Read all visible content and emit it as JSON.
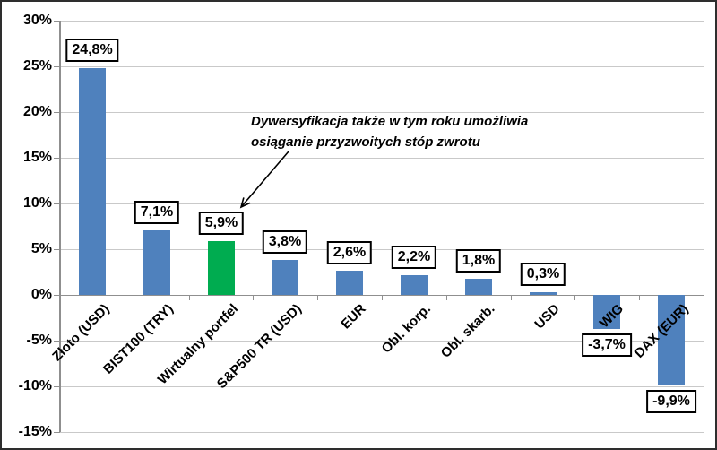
{
  "chart_data": {
    "type": "bar",
    "title": "",
    "xlabel": "",
    "ylabel": "",
    "categories": [
      "Złoto (USD)",
      "BIST100 (TRY)",
      "Wirtualny portfel",
      "S&P500 TR (USD)",
      "EUR",
      "Obl. korp.",
      "Obl. skarb.",
      "USD",
      "WIG",
      "DAX (EUR)"
    ],
    "values": [
      24.8,
      7.1,
      5.9,
      3.8,
      2.6,
      2.2,
      1.8,
      0.3,
      -3.7,
      -9.9
    ],
    "value_labels": [
      "24,8%",
      "7,1%",
      "5,9%",
      "3,8%",
      "2,6%",
      "2,2%",
      "1,8%",
      "0,3%",
      "-3,7%",
      "-9,9%"
    ],
    "highlight_index": 2,
    "highlight_category": "Wirtualny portfel",
    "ylim": [
      -15,
      30
    ],
    "ytick_step": 5,
    "ytick_values": [
      30,
      25,
      20,
      15,
      10,
      5,
      0,
      -5,
      -10,
      -15
    ],
    "ytick_labels": [
      "30%",
      "25%",
      "20%",
      "15%",
      "10%",
      "5%",
      "0%",
      "-5%",
      "-10%",
      "-15%"
    ],
    "grid": true,
    "legend_position": "none",
    "colors": {
      "bar": "#4F81BD",
      "highlight_bar": "#00AC50",
      "gridline": "#C9C9C9",
      "axis": "#8F8F8F",
      "label_box_border": "#000000",
      "label_box_bg": "#FFFFFF",
      "text": "#000000"
    },
    "annotation": {
      "line1": "Dywersyfikacja także w tym roku umożliwia",
      "line2": "osiąganie przyzwoitych stóp zwrotu",
      "arrow_target": "Wirtualny portfel"
    }
  }
}
